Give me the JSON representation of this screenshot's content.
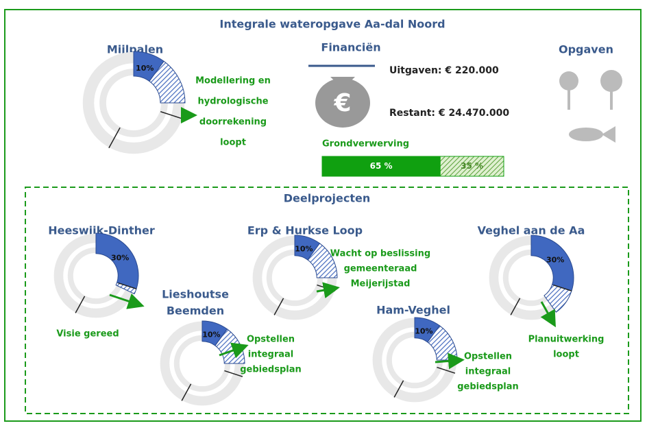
{
  "title": "Integrale wateropgave Aa-dal Noord",
  "finance": {
    "title": "Financiën",
    "spent": "Uitgaven: € 220.000",
    "remaining": "Restant: € 24.470.000"
  },
  "tasks": {
    "title": "Opgaven"
  },
  "section_title": "Deelprojecten",
  "chart_data": [
    {
      "type": "donut",
      "title": [
        "Mijlpalen"
      ],
      "done": 10,
      "in_progress": 15,
      "annotation": [
        "Modellering en",
        "hydrologische",
        "doorrekening",
        "loopt"
      ]
    },
    {
      "type": "donut",
      "title": [
        "Heeswijk-Dinther"
      ],
      "done": 30,
      "in_progress": 2,
      "annotation": [
        "Visie gereed"
      ]
    },
    {
      "type": "donut",
      "title": [
        "Lieshoutse",
        "Beemden"
      ],
      "done": 10,
      "in_progress": 15,
      "annotation": [
        "Opstellen",
        "integraal",
        "gebiedsplan"
      ]
    },
    {
      "type": "donut",
      "title": [
        "Erp & Hurkse Loop"
      ],
      "done": 10,
      "in_progress": 15,
      "annotation": [
        "Wacht op beslissing",
        "gemeenteraad",
        "Meijerijstad"
      ]
    },
    {
      "type": "donut",
      "title": [
        "Ham-Veghel"
      ],
      "done": 10,
      "in_progress": 15,
      "annotation": [
        "Opstellen",
        "integraal",
        "gebiedsplan"
      ]
    },
    {
      "type": "donut",
      "title": [
        "Veghel aan de Aa"
      ],
      "done": 30,
      "in_progress": 10,
      "annotation": [
        "Planuitwerking",
        "loopt"
      ]
    },
    {
      "type": "stacked_bar",
      "title": "Grondverwerving",
      "values": [
        65,
        35
      ],
      "value_labels": [
        "65 %",
        "35 %"
      ],
      "xlim": [
        0,
        100
      ]
    }
  ]
}
